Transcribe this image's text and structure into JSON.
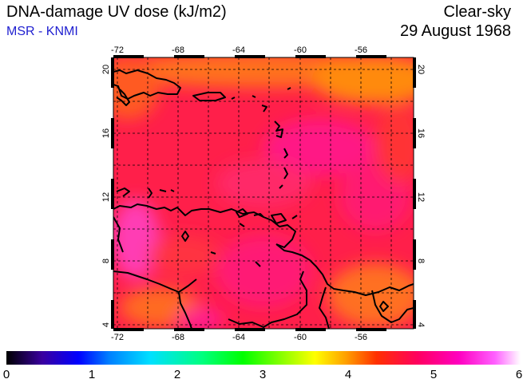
{
  "header": {
    "title": "DNA-damage UV dose (kJ/m2)",
    "credit": "MSR - KNMI",
    "sky_condition": "Clear-sky",
    "date": "29 August 1968"
  },
  "map": {
    "lon_range": [
      -73,
      -53
    ],
    "lat_range": [
      3.5,
      20.5
    ],
    "lon_ticks": [
      "-72",
      "-68",
      "-64",
      "-60",
      "-56"
    ],
    "lat_ticks": [
      "4",
      "8",
      "12",
      "16",
      "20"
    ],
    "colors": {
      "background_field": "#ff1f4a",
      "coastline": "#000000",
      "grid": "#000000"
    }
  },
  "colorbar": {
    "min": 0,
    "max": 6,
    "labels": [
      "0",
      "1",
      "2",
      "3",
      "4",
      "5",
      "6"
    ],
    "stops": [
      "#000000",
      "#3a00a0",
      "#0000ff",
      "#0080ff",
      "#00e0ff",
      "#00ff80",
      "#00ff00",
      "#80ff00",
      "#ffff00",
      "#ffa000",
      "#ff3000",
      "#ff0060",
      "#ff00c0",
      "#ff60ff",
      "#ffffff"
    ]
  }
}
